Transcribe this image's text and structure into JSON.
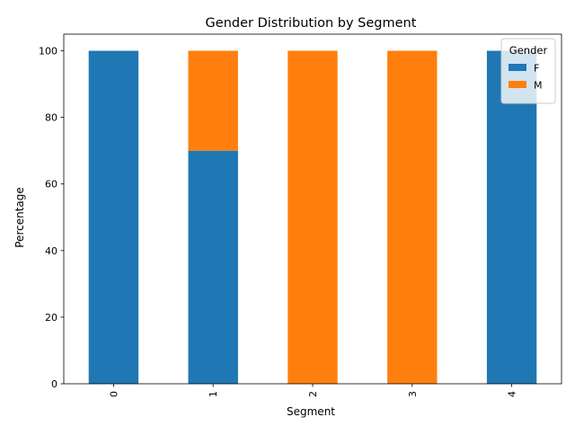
{
  "chart_data": {
    "type": "bar",
    "stacked": true,
    "title": "Gender Distribution by Segment",
    "xlabel": "Segment",
    "ylabel": "Percentage",
    "categories": [
      "0",
      "1",
      "2",
      "3",
      "4"
    ],
    "series": [
      {
        "name": "F",
        "color": "#1f77b4",
        "values": [
          100,
          70,
          0,
          0,
          100
        ]
      },
      {
        "name": "M",
        "color": "#ff7f0e",
        "values": [
          0,
          30,
          100,
          100,
          0
        ]
      }
    ],
    "ylim": [
      0,
      105
    ],
    "yticks": [
      0,
      20,
      40,
      60,
      80,
      100
    ],
    "grid": false,
    "legend": {
      "title": "Gender",
      "placement": "top-right"
    },
    "xtick_rotation": 90
  }
}
